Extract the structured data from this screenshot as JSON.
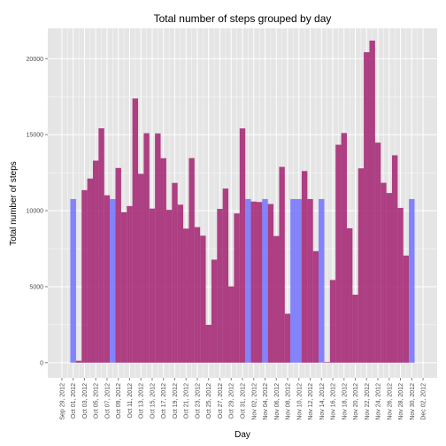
{
  "colors": {
    "panel_background": "#e5e5e5",
    "gridline": "#ffffff",
    "tick": "#7f7f7f",
    "measured_bar": "#a0186b",
    "imputed_bar": "#6b6bff"
  },
  "chart_data": {
    "type": "bar",
    "title": "Total number of steps grouped by day",
    "xlabel": "Day",
    "ylabel": "Total number of steps",
    "ylim": [
      -1000,
      22000
    ],
    "grid": true,
    "legend": "none",
    "yticks": [
      0,
      5000,
      10000,
      15000,
      20000
    ],
    "yticklabels": [
      "0",
      "5000",
      "10000",
      "15000",
      "20000"
    ],
    "xticklabels": [
      "Sep 29, 2012",
      "Oct 01, 2012",
      "Oct 03, 2012",
      "Oct 05, 2012",
      "Oct 07, 2012",
      "Oct 09, 2012",
      "Oct 11, 2012",
      "Oct 13, 2012",
      "Oct 15, 2012",
      "Oct 17, 2012",
      "Oct 19, 2012",
      "Oct 21, 2012",
      "Oct 23, 2012",
      "Oct 25, 2012",
      "Oct 27, 2012",
      "Oct 29, 2012",
      "Oct 31, 2012",
      "Nov 02, 2012",
      "Nov 04, 2012",
      "Nov 06, 2012",
      "Nov 08, 2012",
      "Nov 10, 2012",
      "Nov 12, 2012",
      "Nov 14, 2012",
      "Nov 16, 2012",
      "Nov 18, 2012",
      "Nov 20, 2012",
      "Nov 22, 2012",
      "Nov 24, 2012",
      "Nov 26, 2012",
      "Nov 28, 2012",
      "Nov 30, 2012",
      "Dec 02, 2012"
    ],
    "xtick_dates": [
      "2012-09-29",
      "2012-10-01",
      "2012-10-03",
      "2012-10-05",
      "2012-10-07",
      "2012-10-09",
      "2012-10-11",
      "2012-10-13",
      "2012-10-15",
      "2012-10-17",
      "2012-10-19",
      "2012-10-21",
      "2012-10-23",
      "2012-10-25",
      "2012-10-27",
      "2012-10-29",
      "2012-10-31",
      "2012-11-02",
      "2012-11-04",
      "2012-11-06",
      "2012-11-08",
      "2012-11-10",
      "2012-11-12",
      "2012-11-14",
      "2012-11-16",
      "2012-11-18",
      "2012-11-20",
      "2012-11-22",
      "2012-11-24",
      "2012-11-26",
      "2012-11-28",
      "2012-11-30",
      "2012-12-02"
    ],
    "bars": [
      {
        "date": "2012-10-01",
        "steps": 10766,
        "color": "#6b6bff"
      },
      {
        "date": "2012-10-02",
        "steps": 126,
        "color": "#a0186b"
      },
      {
        "date": "2012-10-03",
        "steps": 11352,
        "color": "#a0186b"
      },
      {
        "date": "2012-10-04",
        "steps": 12116,
        "color": "#a0186b"
      },
      {
        "date": "2012-10-05",
        "steps": 13294,
        "color": "#a0186b"
      },
      {
        "date": "2012-10-06",
        "steps": 15420,
        "color": "#a0186b"
      },
      {
        "date": "2012-10-07",
        "steps": 11015,
        "color": "#a0186b"
      },
      {
        "date": "2012-10-08",
        "steps": 10766,
        "color": "#6b6bff"
      },
      {
        "date": "2012-10-09",
        "steps": 12811,
        "color": "#a0186b"
      },
      {
        "date": "2012-10-10",
        "steps": 9900,
        "color": "#a0186b"
      },
      {
        "date": "2012-10-11",
        "steps": 10304,
        "color": "#a0186b"
      },
      {
        "date": "2012-10-12",
        "steps": 17382,
        "color": "#a0186b"
      },
      {
        "date": "2012-10-13",
        "steps": 12426,
        "color": "#a0186b"
      },
      {
        "date": "2012-10-14",
        "steps": 15098,
        "color": "#a0186b"
      },
      {
        "date": "2012-10-15",
        "steps": 10139,
        "color": "#a0186b"
      },
      {
        "date": "2012-10-16",
        "steps": 15084,
        "color": "#a0186b"
      },
      {
        "date": "2012-10-17",
        "steps": 13452,
        "color": "#a0186b"
      },
      {
        "date": "2012-10-18",
        "steps": 10056,
        "color": "#a0186b"
      },
      {
        "date": "2012-10-19",
        "steps": 11829,
        "color": "#a0186b"
      },
      {
        "date": "2012-10-20",
        "steps": 10395,
        "color": "#a0186b"
      },
      {
        "date": "2012-10-21",
        "steps": 8821,
        "color": "#a0186b"
      },
      {
        "date": "2012-10-22",
        "steps": 13460,
        "color": "#a0186b"
      },
      {
        "date": "2012-10-23",
        "steps": 8918,
        "color": "#a0186b"
      },
      {
        "date": "2012-10-24",
        "steps": 8355,
        "color": "#a0186b"
      },
      {
        "date": "2012-10-25",
        "steps": 2492,
        "color": "#a0186b"
      },
      {
        "date": "2012-10-26",
        "steps": 6778,
        "color": "#a0186b"
      },
      {
        "date": "2012-10-27",
        "steps": 10119,
        "color": "#a0186b"
      },
      {
        "date": "2012-10-28",
        "steps": 11458,
        "color": "#a0186b"
      },
      {
        "date": "2012-10-29",
        "steps": 5018,
        "color": "#a0186b"
      },
      {
        "date": "2012-10-30",
        "steps": 9819,
        "color": "#a0186b"
      },
      {
        "date": "2012-10-31",
        "steps": 15414,
        "color": "#a0186b"
      },
      {
        "date": "2012-11-01",
        "steps": 10766,
        "color": "#6b6bff"
      },
      {
        "date": "2012-11-02",
        "steps": 10600,
        "color": "#a0186b"
      },
      {
        "date": "2012-11-03",
        "steps": 10571,
        "color": "#a0186b"
      },
      {
        "date": "2012-11-04",
        "steps": 10766,
        "color": "#6b6bff"
      },
      {
        "date": "2012-11-05",
        "steps": 10439,
        "color": "#a0186b"
      },
      {
        "date": "2012-11-06",
        "steps": 8334,
        "color": "#a0186b"
      },
      {
        "date": "2012-11-07",
        "steps": 12883,
        "color": "#a0186b"
      },
      {
        "date": "2012-11-08",
        "steps": 3219,
        "color": "#a0186b"
      },
      {
        "date": "2012-11-09",
        "steps": 10766,
        "color": "#6b6bff"
      },
      {
        "date": "2012-11-10",
        "steps": 10766,
        "color": "#6b6bff"
      },
      {
        "date": "2012-11-11",
        "steps": 12608,
        "color": "#a0186b"
      },
      {
        "date": "2012-11-12",
        "steps": 10765,
        "color": "#a0186b"
      },
      {
        "date": "2012-11-13",
        "steps": 7336,
        "color": "#a0186b"
      },
      {
        "date": "2012-11-14",
        "steps": 10766,
        "color": "#6b6bff"
      },
      {
        "date": "2012-11-15",
        "steps": 41,
        "color": "#a0186b"
      },
      {
        "date": "2012-11-16",
        "steps": 5441,
        "color": "#a0186b"
      },
      {
        "date": "2012-11-17",
        "steps": 14339,
        "color": "#a0186b"
      },
      {
        "date": "2012-11-18",
        "steps": 15110,
        "color": "#a0186b"
      },
      {
        "date": "2012-11-19",
        "steps": 8841,
        "color": "#a0186b"
      },
      {
        "date": "2012-11-20",
        "steps": 4472,
        "color": "#a0186b"
      },
      {
        "date": "2012-11-21",
        "steps": 12787,
        "color": "#a0186b"
      },
      {
        "date": "2012-11-22",
        "steps": 20427,
        "color": "#a0186b"
      },
      {
        "date": "2012-11-23",
        "steps": 21194,
        "color": "#a0186b"
      },
      {
        "date": "2012-11-24",
        "steps": 14478,
        "color": "#a0186b"
      },
      {
        "date": "2012-11-25",
        "steps": 11834,
        "color": "#a0186b"
      },
      {
        "date": "2012-11-26",
        "steps": 11162,
        "color": "#a0186b"
      },
      {
        "date": "2012-11-27",
        "steps": 13646,
        "color": "#a0186b"
      },
      {
        "date": "2012-11-28",
        "steps": 10183,
        "color": "#a0186b"
      },
      {
        "date": "2012-11-29",
        "steps": 7047,
        "color": "#a0186b"
      },
      {
        "date": "2012-11-30",
        "steps": 10766,
        "color": "#6b6bff"
      }
    ]
  }
}
